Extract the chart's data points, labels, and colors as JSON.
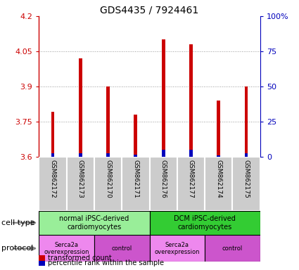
{
  "title": "GDS4435 / 7924461",
  "samples": [
    "GSM862172",
    "GSM862173",
    "GSM862170",
    "GSM862171",
    "GSM862176",
    "GSM862177",
    "GSM862174",
    "GSM862175"
  ],
  "red_values": [
    3.79,
    4.02,
    3.9,
    3.78,
    4.1,
    4.08,
    3.84,
    3.9
  ],
  "blue_values": [
    2.5,
    2.5,
    2.5,
    1.5,
    5.0,
    5.0,
    1.0,
    2.5
  ],
  "ylim_left": [
    3.6,
    4.2
  ],
  "ylim_right": [
    0,
    100
  ],
  "yticks_left": [
    3.6,
    3.75,
    3.9,
    4.05,
    4.2
  ],
  "yticks_right": [
    0,
    25,
    50,
    75,
    100
  ],
  "ytick_labels_left": [
    "3.6",
    "3.75",
    "3.9",
    "4.05",
    "4.2"
  ],
  "ytick_labels_right": [
    "0",
    "25",
    "50",
    "75",
    "100%"
  ],
  "bar_width": 0.12,
  "red_color": "#cc0000",
  "blue_color": "#0000bb",
  "grid_color": "#999999",
  "cell_type_groups": [
    {
      "label": "normal iPSC-derived\ncardiomyocytes",
      "start": 0,
      "end": 4,
      "color": "#99ee99"
    },
    {
      "label": "DCM iPSC-derived\ncardiomyocytes",
      "start": 4,
      "end": 8,
      "color": "#33cc33"
    }
  ],
  "protocol_groups": [
    {
      "label": "Serca2a\noverexpression",
      "start": 0,
      "end": 2,
      "color": "#ee88ee"
    },
    {
      "label": "control",
      "start": 2,
      "end": 4,
      "color": "#cc55cc"
    },
    {
      "label": "Serca2a\noverexpression",
      "start": 4,
      "end": 6,
      "color": "#ee88ee"
    },
    {
      "label": "control",
      "start": 6,
      "end": 8,
      "color": "#cc55cc"
    }
  ],
  "cell_type_label": "cell type",
  "protocol_label": "protocol",
  "legend_red": "transformed count",
  "legend_blue": "percentile rank within the sample",
  "bg_color": "#ffffff",
  "plot_bg": "#ffffff",
  "sample_bg": "#cccccc"
}
